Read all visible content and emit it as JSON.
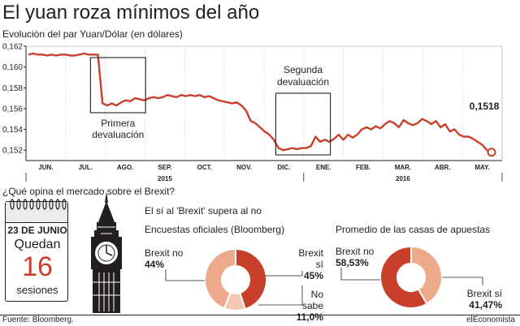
{
  "title": "El yuan roza mínimos del año",
  "subtitle": "Evolución del par Yuan/Dólar (en dólares)",
  "colors": {
    "accent": "#c9402a",
    "accent_light": "#eeaa8c",
    "text": "#231f20"
  },
  "chart_data": [
    {
      "type": "line",
      "title": "El yuan roza mínimos del año",
      "subtitle": "Evolución del par Yuan/Dólar (en dólares)",
      "ylim": [
        0.151,
        0.162
      ],
      "yticks": [
        "0,162",
        "0,160",
        "0,158",
        "0,156",
        "0,154",
        "0,152"
      ],
      "ytick_values": [
        0.162,
        0.16,
        0.158,
        0.156,
        0.154,
        0.152
      ],
      "xtick_labels": [
        "JUN.",
        "JUL.",
        "AGO.",
        "SEP.",
        "OCT.",
        "NOV.",
        "DIC.",
        "ENE.",
        "FEB.",
        "MAR.",
        "ABR.",
        "MAY."
      ],
      "year_labels": [
        "2015",
        "2016"
      ],
      "grid": "vertical",
      "series": [
        {
          "values": [
            0.1612,
            0.1613,
            0.1612,
            0.1612,
            0.1611,
            0.1612,
            0.1611,
            0.1612,
            0.1612,
            0.1611,
            0.1611,
            0.1612,
            0.1613,
            0.1612,
            0.1612,
            0.1612,
            0.1565,
            0.1563,
            0.1565,
            0.1563,
            0.1566,
            0.1568,
            0.1567,
            0.157,
            0.1569,
            0.1568,
            0.157,
            0.1571,
            0.157,
            0.1571,
            0.1573,
            0.1572,
            0.1571,
            0.1573,
            0.1572,
            0.1573,
            0.1572,
            0.1573,
            0.1571,
            0.1572,
            0.157,
            0.1568,
            0.1567,
            0.1566,
            0.1565,
            0.1566,
            0.1563,
            0.1558,
            0.1548,
            0.1546,
            0.1542,
            0.1538,
            0.1535,
            0.153,
            0.1522,
            0.152,
            0.1521,
            0.1522,
            0.1521,
            0.1522,
            0.1522,
            0.1524,
            0.1533,
            0.1528,
            0.153,
            0.1528,
            0.1531,
            0.1535,
            0.153,
            0.1535,
            0.1532,
            0.1535,
            0.154,
            0.1542,
            0.154,
            0.1543,
            0.1541,
            0.1545,
            0.1548,
            0.1546,
            0.1542,
            0.1549,
            0.1546,
            0.1544,
            0.1546,
            0.155,
            0.1548,
            0.1545,
            0.1548,
            0.1542,
            0.1545,
            0.1538,
            0.154,
            0.1535,
            0.1533,
            0.1533,
            0.1531,
            0.1528,
            0.1525,
            0.152,
            0.1518
          ]
        }
      ],
      "annotations": [
        {
          "text": "Primera",
          "text2": "devaluación"
        },
        {
          "text": "Segunda",
          "text2": "devaluación"
        },
        {
          "text": "0,1518"
        }
      ]
    },
    {
      "type": "pie",
      "title": "Encuestas oficiales (Bloomberg)",
      "labels": [
        "Brexit sí",
        "No sabe",
        "Brexit no"
      ],
      "values": [
        45,
        11.0,
        44
      ],
      "value_labels": [
        "45%",
        "11,0%",
        "44%"
      ],
      "colors": [
        "#c9402a",
        "#f5c7b3",
        "#eeaa8c"
      ]
    },
    {
      "type": "pie",
      "title": "Promedio de las casas de apuestas",
      "labels": [
        "Brexit sí",
        "Brexit no"
      ],
      "values": [
        41.47,
        58.53
      ],
      "value_labels": [
        "41,47%",
        "58,53%"
      ],
      "colors": [
        "#eeaa8c",
        "#c9402a"
      ]
    }
  ],
  "survey": {
    "question": "¿Qué opina el mercado sobre el Brexit?",
    "headline": "El sí al 'Brexit' supera al no",
    "encuestas": {
      "title": "Encuestas oficiales (Bloomberg)",
      "no_label": "Brexit no",
      "no_value": "44%",
      "si_label": "Brexit sí",
      "si_value": "45%",
      "ns_label": "No sabe",
      "ns_value": "11,0%"
    },
    "apuestas": {
      "title": "Promedio de las casas de apuestas",
      "no_label": "Brexit no",
      "no_value": "58,53%",
      "si_label": "Brexit sí",
      "si_value": "41,47%"
    }
  },
  "calendar": {
    "date": "23 DE JUNIO",
    "line1": "Quedan",
    "number": "16",
    "line2": "sesiones"
  },
  "footer": {
    "source": "Fuente: Bloomberg.",
    "brand": "elEconomista"
  }
}
